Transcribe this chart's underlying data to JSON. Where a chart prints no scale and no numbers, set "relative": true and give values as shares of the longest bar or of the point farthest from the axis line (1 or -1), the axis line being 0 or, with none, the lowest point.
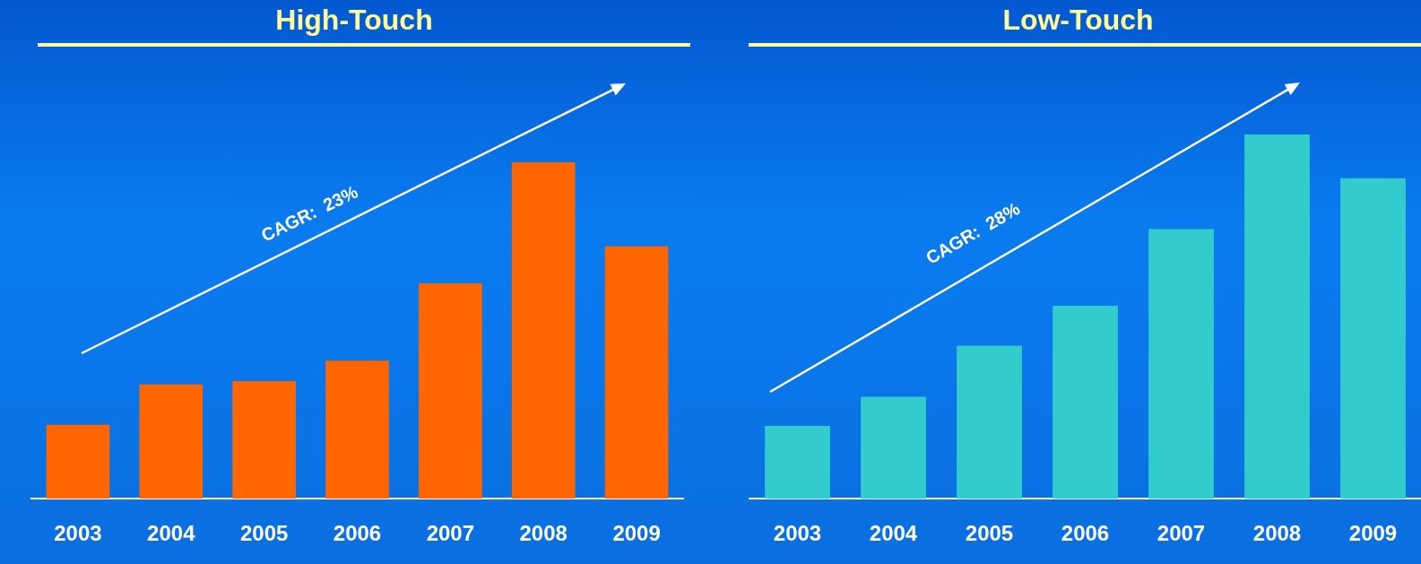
{
  "chart_data": [
    {
      "type": "bar",
      "title": "High-Touch",
      "categories": [
        "2003",
        "2004",
        "2005",
        "2006",
        "2007",
        "2008",
        "2009"
      ],
      "values": [
        0.22,
        0.34,
        0.35,
        0.41,
        0.64,
        1,
        0.75
      ],
      "color": "#ff6600",
      "relative": true,
      "annotations": [
        "CAGR:  23%"
      ]
    },
    {
      "type": "bar",
      "title": "Low-Touch",
      "categories": [
        "2003",
        "2004",
        "2005",
        "2006",
        "2007",
        "2008",
        "2009"
      ],
      "values": [
        0.2,
        0.28,
        0.42,
        0.53,
        0.74,
        1,
        0.88
      ],
      "color": "#33cccc",
      "relative": true,
      "annotations": [
        "CAGR:  28%"
      ]
    }
  ]
}
